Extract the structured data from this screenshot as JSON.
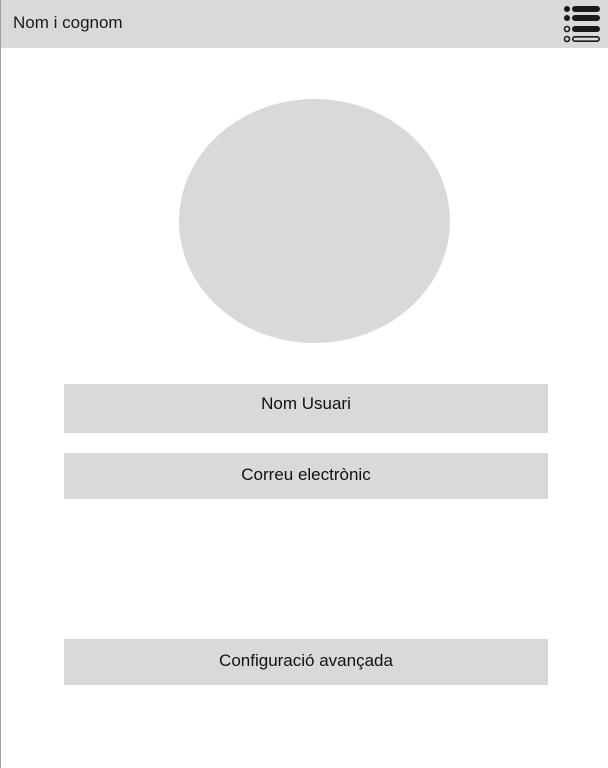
{
  "header": {
    "title": "Nom i cognom",
    "menu_icon": "list-menu-icon"
  },
  "profile": {
    "avatar_icon": "avatar-placeholder"
  },
  "fields": {
    "username": "Nom Usuari",
    "email": "Correu electrònic",
    "advanced_config": "Configuració avançada"
  },
  "colors": {
    "header_bg": "#d9d9d9",
    "field_bg": "#d9d9d9",
    "accent": "#1e6fd9",
    "icon": "#1a1a1a"
  }
}
